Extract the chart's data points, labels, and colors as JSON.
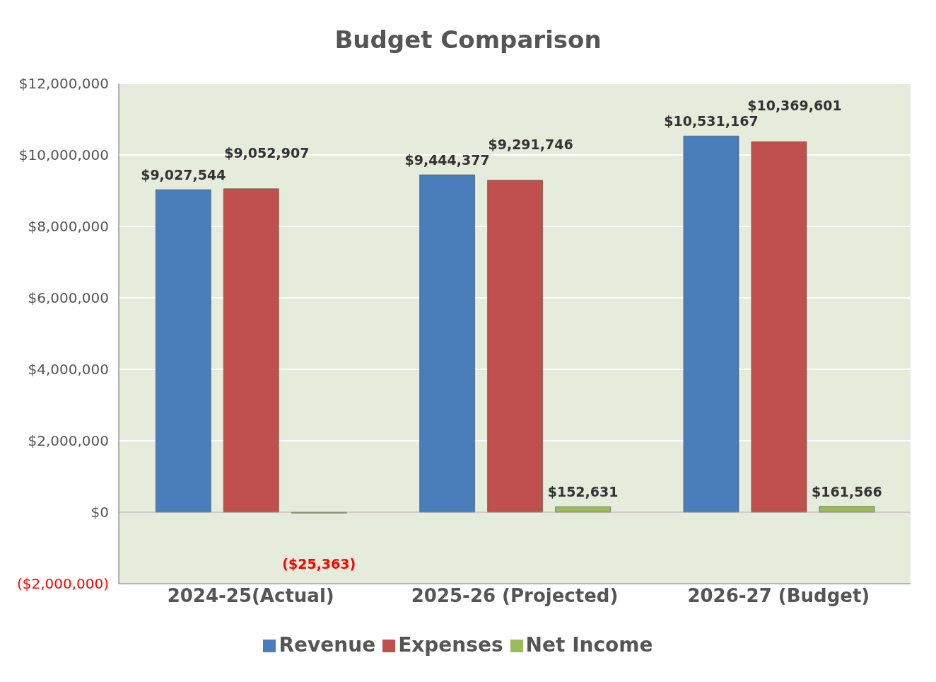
{
  "chart_data": {
    "type": "bar",
    "title": "Budget Comparison",
    "categories": [
      "2024-25(Actual)",
      "2025-26 (Projected)",
      "2026-27 (Budget)"
    ],
    "series": [
      {
        "name": "Revenue",
        "color": "#4a7ebb",
        "values": [
          9027544,
          9444377,
          10531167
        ],
        "value_labels": [
          "$9,027,544",
          "$9,444,377",
          "$10,531,167"
        ]
      },
      {
        "name": "Expenses",
        "color": "#c0504d",
        "values": [
          9052907,
          9291746,
          10369601
        ],
        "value_labels": [
          "$9,052,907",
          "$9,291,746",
          "$10,369,601"
        ]
      },
      {
        "name": "Net Income",
        "color": "#9bbb59",
        "values": [
          -25363,
          152631,
          161566
        ],
        "value_labels": [
          "($25,363)",
          "$152,631",
          "$161,566"
        ]
      }
    ],
    "ylim": [
      -2000000,
      12000000
    ],
    "yticks": [
      {
        "value": -2000000,
        "label": "($2,000,000)"
      },
      {
        "value": 0,
        "label": "$0"
      },
      {
        "value": 2000000,
        "label": "$2,000,000"
      },
      {
        "value": 4000000,
        "label": "$4,000,000"
      },
      {
        "value": 6000000,
        "label": "$6,000,000"
      },
      {
        "value": 8000000,
        "label": "$8,000,000"
      },
      {
        "value": 10000000,
        "label": "$10,000,000"
      },
      {
        "value": 12000000,
        "label": "$12,000,000"
      }
    ],
    "grid": "y",
    "legend": "bottom"
  }
}
